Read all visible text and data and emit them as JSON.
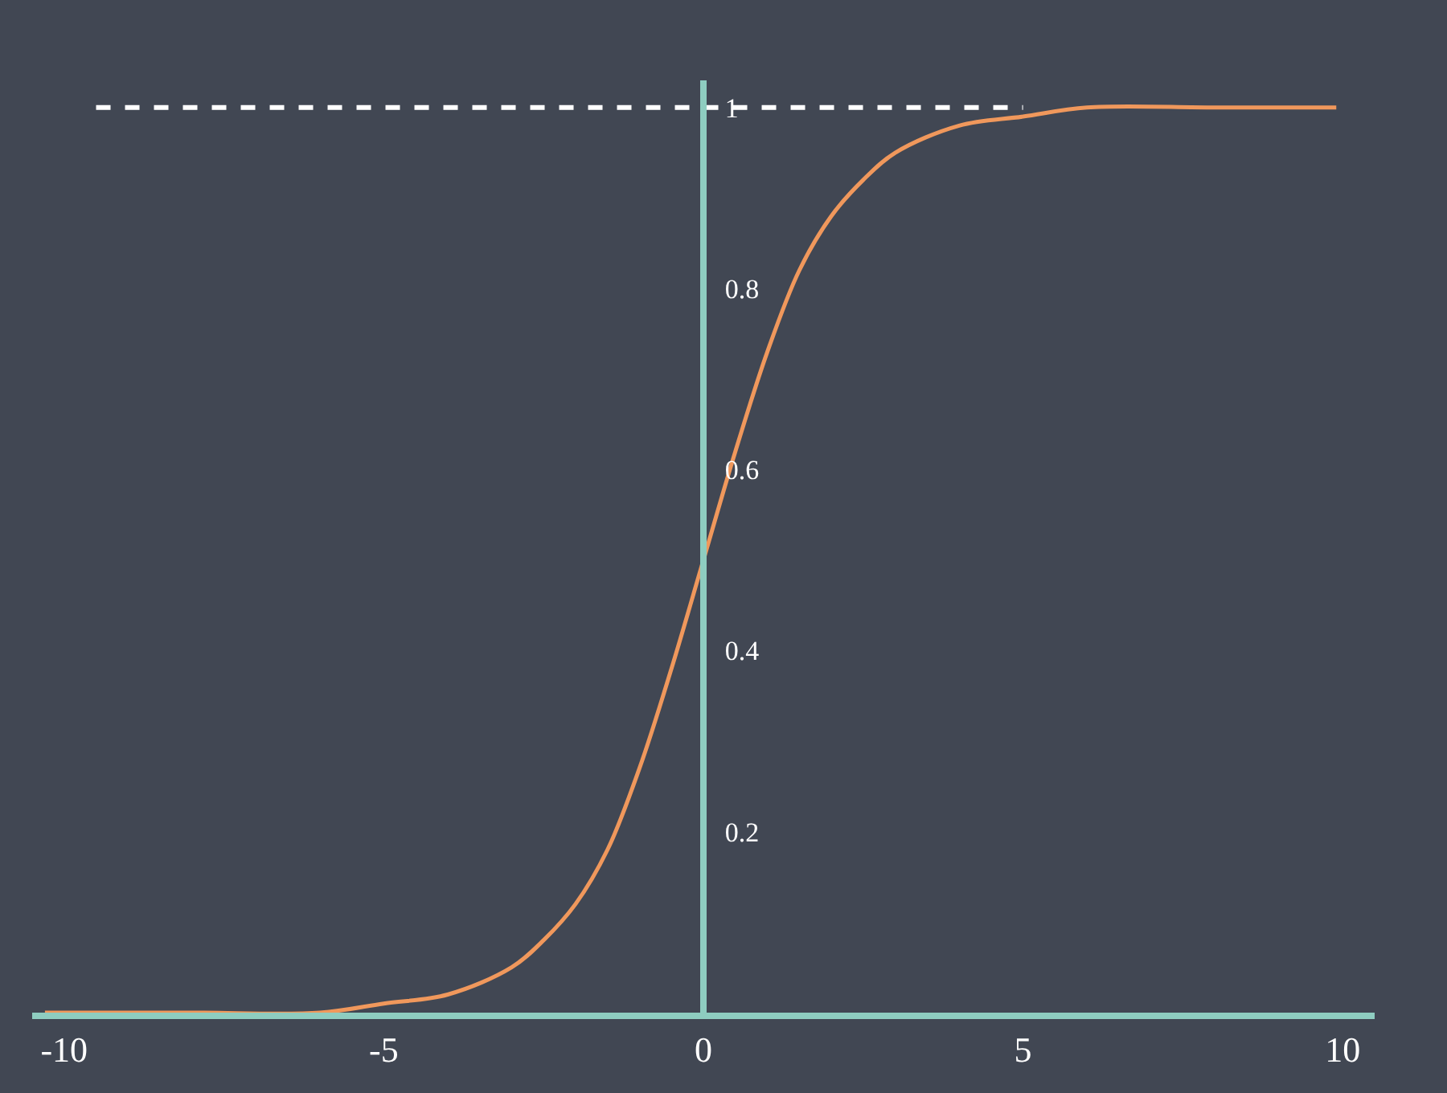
{
  "chart_data": {
    "type": "line",
    "series": [
      {
        "color": "#f0985c",
        "x": [
          -10.3,
          -8,
          -6,
          -5,
          -4,
          -3,
          -2.5,
          -2,
          -1.5,
          -1,
          -0.5,
          0,
          0.5,
          1,
          1.5,
          2,
          2.5,
          3,
          4,
          5,
          6,
          8,
          9.9
        ],
        "values": [
          0,
          0,
          0,
          0.01,
          0.02,
          0.05,
          0.08,
          0.12,
          0.18,
          0.27,
          0.38,
          0.5,
          0.62,
          0.73,
          0.82,
          0.88,
          0.92,
          0.95,
          0.98,
          0.99,
          1,
          1,
          1
        ]
      },
      {
        "color": "#ffffff",
        "x": [
          -9.5,
          5
        ],
        "values": [
          1,
          1
        ],
        "line_style": "dashed"
      }
    ],
    "xlim": [
      -10.5,
      10.5
    ],
    "ylim": [
      0,
      1.03
    ],
    "xticks": [
      -10,
      -5,
      0,
      5,
      10
    ],
    "yticks": [
      0.2,
      0.4,
      0.6,
      0.8,
      1
    ],
    "marker": "none"
  }
}
